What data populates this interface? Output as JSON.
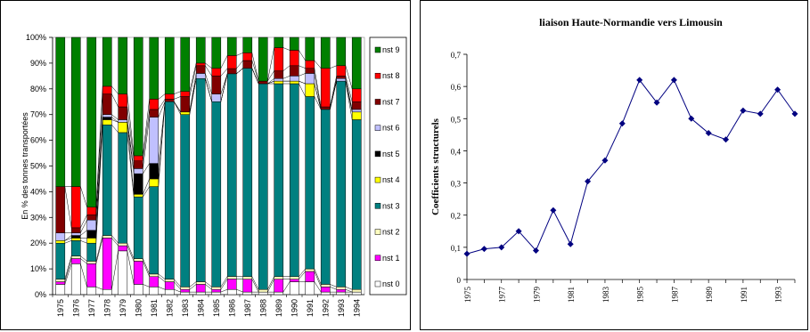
{
  "chart_data": [
    {
      "type": "bar",
      "stacked": true,
      "percent": true,
      "title": "",
      "ylabel": "En % des tonnes transportées",
      "xlabel": "",
      "ylim": [
        0,
        100
      ],
      "yticks": [
        "0%",
        "10%",
        "20%",
        "30%",
        "40%",
        "50%",
        "60%",
        "70%",
        "80%",
        "90%",
        "100%"
      ],
      "categories": [
        "1975",
        "1976",
        "1977",
        "1978",
        "1979",
        "1980",
        "1981",
        "1982",
        "1983",
        "1984",
        "1985",
        "1986",
        "1987",
        "1988",
        "1989",
        "1990",
        "1991",
        "1992",
        "1993",
        "1994"
      ],
      "legend_position": "right",
      "series": [
        {
          "name": "nst 0",
          "color": "#FFFFFF",
          "values": [
            4,
            12,
            3,
            2,
            17,
            4,
            3,
            2,
            1,
            1,
            1,
            2,
            1,
            1,
            1,
            5,
            5,
            1,
            1,
            1
          ]
        },
        {
          "name": "nst 1",
          "color": "#FF00FF",
          "values": [
            1,
            2,
            9,
            20,
            2,
            9,
            4,
            3,
            1,
            3,
            1,
            4,
            5,
            0,
            5,
            1,
            4,
            2,
            1,
            0
          ]
        },
        {
          "name": "nst 2",
          "color": "#FFFFC0",
          "values": [
            1,
            1,
            1,
            1,
            1,
            1,
            1,
            1,
            1,
            1,
            1,
            1,
            1,
            1,
            1,
            1,
            1,
            1,
            1,
            1
          ]
        },
        {
          "name": "nst 3",
          "color": "#008080",
          "values": [
            14,
            6,
            7,
            43,
            43,
            24,
            34,
            69,
            67,
            79,
            72,
            78,
            81,
            80,
            75,
            75,
            67,
            68,
            80,
            66
          ]
        },
        {
          "name": "nst 4",
          "color": "#FFFF00",
          "values": [
            1,
            1,
            2,
            2,
            4,
            1,
            3,
            0,
            1,
            0,
            0,
            0,
            0,
            0,
            1,
            1,
            5,
            0,
            0,
            3
          ]
        },
        {
          "name": "nst 5",
          "color": "#000000",
          "values": [
            0,
            1,
            3,
            1,
            0,
            8,
            6,
            0,
            0,
            0,
            0,
            0,
            0,
            0,
            0,
            0,
            0,
            0,
            0,
            0
          ]
        },
        {
          "name": "nst 6",
          "color": "#C0C0FF",
          "values": [
            3,
            1,
            4,
            1,
            1,
            2,
            18,
            0,
            0,
            2,
            3,
            0,
            0,
            0,
            1,
            2,
            4,
            0,
            1,
            1
          ]
        },
        {
          "name": "nst 7",
          "color": "#800000",
          "values": [
            18,
            2,
            2,
            8,
            5,
            3,
            3,
            1,
            6,
            3,
            7,
            2,
            3,
            1,
            3,
            4,
            2,
            1,
            1,
            3
          ]
        },
        {
          "name": "nst 8",
          "color": "#FF0000",
          "values": [
            0,
            16,
            3,
            3,
            5,
            2,
            4,
            2,
            2,
            1,
            3,
            5,
            3,
            0,
            9,
            6,
            3,
            15,
            4,
            5
          ]
        },
        {
          "name": "nst 9",
          "color": "#008000",
          "values": [
            58,
            58,
            66,
            19,
            22,
            46,
            24,
            22,
            21,
            10,
            12,
            7,
            6,
            17,
            4,
            5,
            9,
            12,
            11,
            20
          ]
        }
      ]
    },
    {
      "type": "line",
      "title": "liaison Haute-Normandie vers Limousin",
      "xlabel": "",
      "ylabel": "Coefficients structurels",
      "ylim": [
        0,
        0.7
      ],
      "yticks": [
        "0",
        "0,1",
        "0,2",
        "0,3",
        "0,4",
        "0,5",
        "0,6",
        "0,7"
      ],
      "xlim": [
        1975,
        1994
      ],
      "xticks": [
        "1975",
        "1977",
        "1979",
        "1981",
        "1983",
        "1985",
        "1987",
        "1989",
        "1991",
        "1993"
      ],
      "x": [
        1975,
        1976,
        1977,
        1978,
        1979,
        1980,
        1981,
        1982,
        1983,
        1984,
        1985,
        1986,
        1987,
        1988,
        1989,
        1990,
        1991,
        1992,
        1993,
        1994
      ],
      "series": [
        {
          "color": "#000080",
          "marker": "diamond",
          "values": [
            0.08,
            0.095,
            0.1,
            0.15,
            0.09,
            0.215,
            0.11,
            0.305,
            0.37,
            0.485,
            0.62,
            0.55,
            0.62,
            0.5,
            0.455,
            0.435,
            0.525,
            0.515,
            0.59,
            0.515
          ]
        }
      ]
    }
  ]
}
